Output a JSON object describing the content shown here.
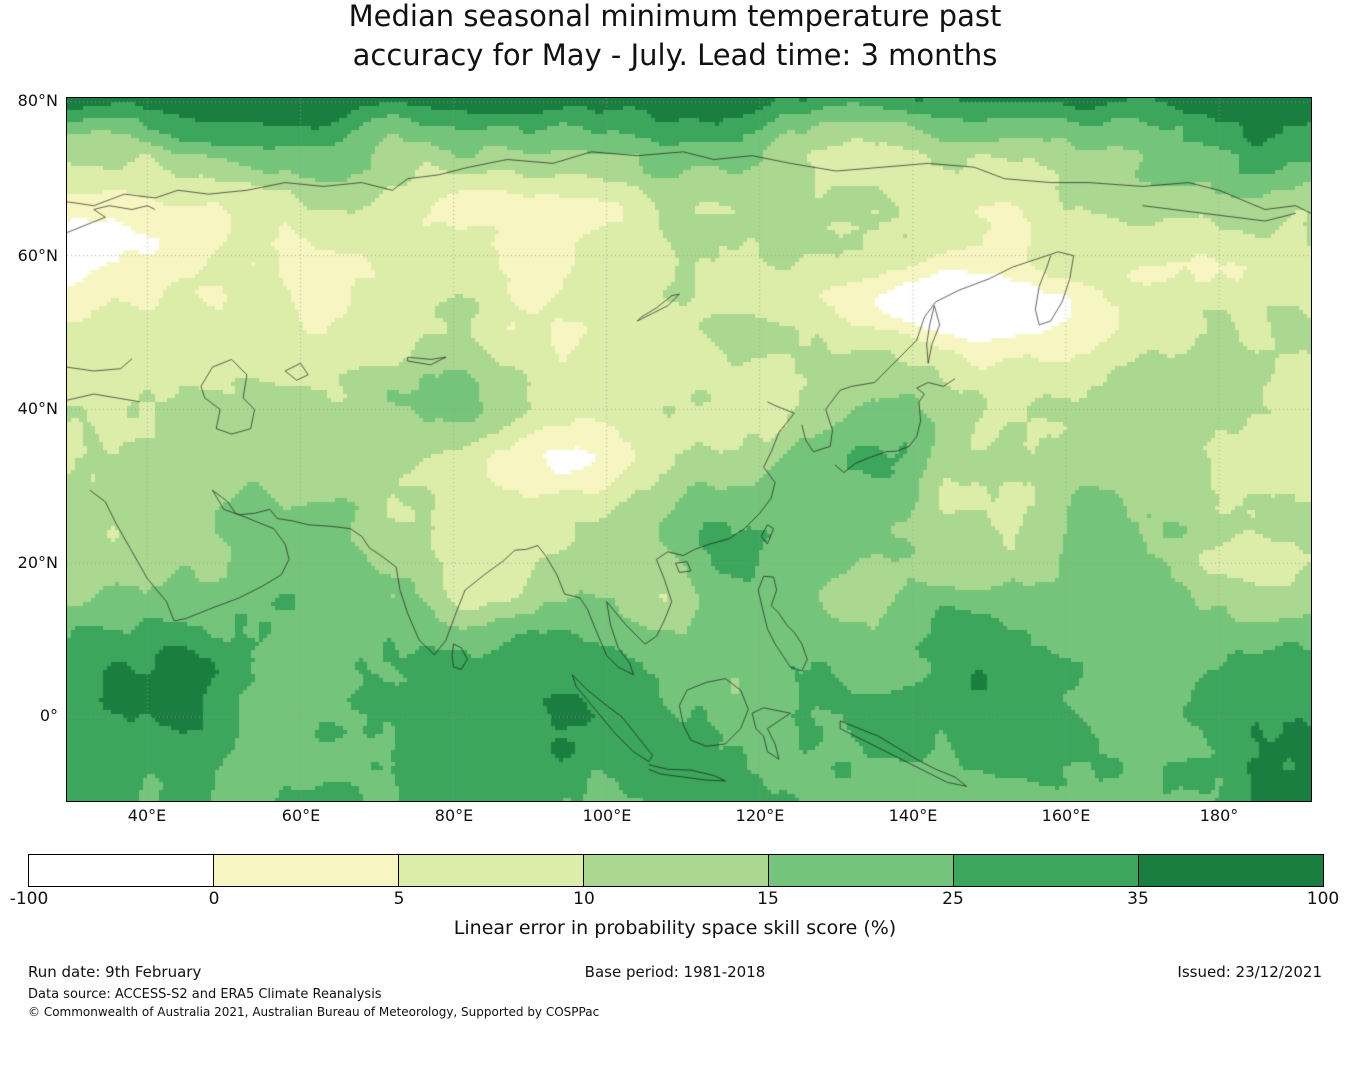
{
  "title": {
    "line1": "Median seasonal minimum temperature past",
    "line2": "accuracy for May - July. Lead time: 3 months"
  },
  "map": {
    "lat_ticks": [
      "80°N",
      "60°N",
      "40°N",
      "20°N",
      "0°"
    ],
    "lon_ticks": [
      "40°E",
      "60°E",
      "80°E",
      "100°E",
      "120°E",
      "140°E",
      "160°E",
      "180°"
    ]
  },
  "colorbar": {
    "label": "Linear error in probability space skill score (%)",
    "tick_labels": [
      "-100",
      "0",
      "5",
      "10",
      "15",
      "25",
      "35",
      "100"
    ],
    "segment_colors": [
      "#ffffff",
      "#f7f6c3",
      "#dcedaa",
      "#aad890",
      "#75c47b",
      "#3ba65c",
      "#1b7e41"
    ]
  },
  "footer": {
    "run_date": "Run date: 9th February",
    "base_period": "Base period: 1981-2018",
    "issued": "Issued: 23/12/2021",
    "data_source": "Data source: ACCESS-S2 and ERA5 Climate Reanalysis",
    "copyright": "© Commonwealth of Australia 2021, Australian Bureau of Meteorology, Supported by COSPPac"
  },
  "chart_data": {
    "type": "heatmap",
    "title": "Median seasonal minimum temperature past accuracy for May - July. Lead time: 3 months",
    "colorbar_label": "Linear error in probability space skill score (%)",
    "colorbar_bounds": [
      -100,
      0,
      5,
      10,
      15,
      25,
      35,
      100
    ],
    "x_tick_labels": [
      "40°E",
      "60°E",
      "80°E",
      "100°E",
      "120°E",
      "140°E",
      "160°E",
      "180°"
    ],
    "y_tick_labels": [
      "80°N",
      "60°N",
      "40°N",
      "20°N",
      "0°"
    ]
  }
}
